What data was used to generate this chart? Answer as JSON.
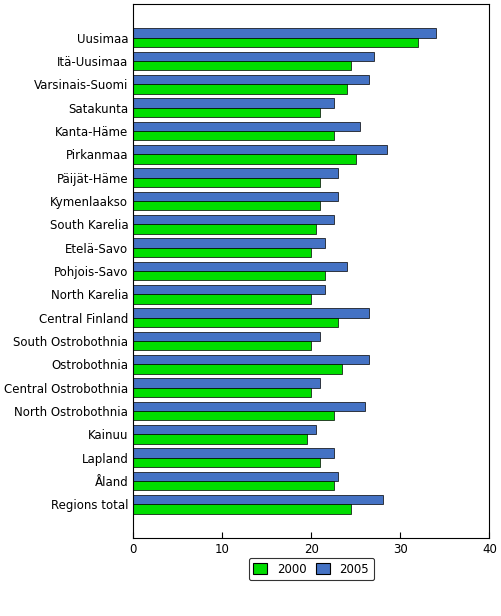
{
  "categories": [
    "Uusimaa",
    "Itä-Uusimaa",
    "Varsinais-Suomi",
    "Satakunta",
    "Kanta-Häme",
    "Pirkanmaa",
    "Päijät-Häme",
    "Kymenlaakso",
    "South Karelia",
    "Etelä-Savo",
    "Pohjois-Savo",
    "North Karelia",
    "Central Finland",
    "South Ostrobothnia",
    "Ostrobothnia",
    "Central Ostrobothnia",
    "North Ostrobothnia",
    "Kainuu",
    "Lapland",
    "Åland",
    "Regions total"
  ],
  "values_2000": [
    32.0,
    24.5,
    24.0,
    21.0,
    22.5,
    25.0,
    21.0,
    21.0,
    20.5,
    20.0,
    21.5,
    20.0,
    23.0,
    20.0,
    23.5,
    20.0,
    22.5,
    19.5,
    21.0,
    22.5,
    24.5
  ],
  "values_2005": [
    34.0,
    27.0,
    26.5,
    22.5,
    25.5,
    28.5,
    23.0,
    23.0,
    22.5,
    21.5,
    24.0,
    21.5,
    26.5,
    21.0,
    26.5,
    21.0,
    26.0,
    20.5,
    22.5,
    23.0,
    28.0
  ],
  "color_2000": "#00dd00",
  "color_2005": "#4472c4",
  "xlim": [
    0,
    40
  ],
  "xticks": [
    0,
    10,
    20,
    30,
    40
  ],
  "bar_height": 0.4,
  "background_color": "#ffffff",
  "edge_color": "#000000",
  "font_size": 8.5
}
